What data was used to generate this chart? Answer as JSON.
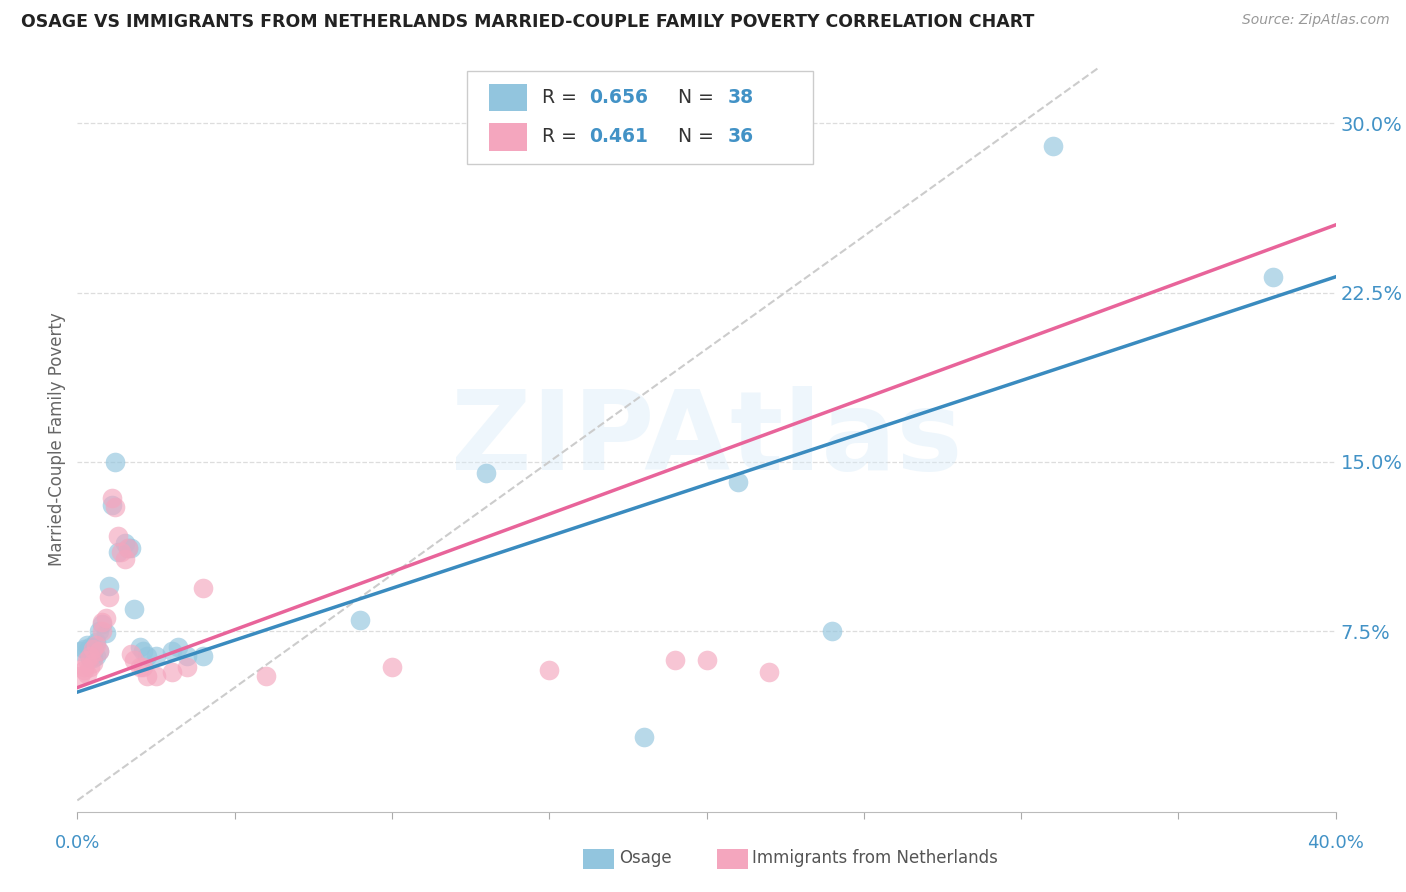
{
  "title": "OSAGE VS IMMIGRANTS FROM NETHERLANDS MARRIED-COUPLE FAMILY POVERTY CORRELATION CHART",
  "source": "Source: ZipAtlas.com",
  "ylabel": "Married-Couple Family Poverty",
  "ytick_labels": [
    "7.5%",
    "15.0%",
    "22.5%",
    "30.0%"
  ],
  "ytick_vals": [
    0.075,
    0.15,
    0.225,
    0.3
  ],
  "xlim": [
    0.0,
    0.4
  ],
  "ylim": [
    -0.005,
    0.325
  ],
  "color_blue": "#92c5de",
  "color_pink": "#f4a6be",
  "color_blue_line": "#3a8bbf",
  "color_pink_line": "#e8649a",
  "color_blue_text": "#4292c6",
  "watermark": "ZIPAtlas",
  "legend_r1": "0.656",
  "legend_n1": "38",
  "legend_r2": "0.461",
  "legend_n2": "36",
  "blue_scatter": [
    [
      0.001,
      0.066
    ],
    [
      0.002,
      0.067
    ],
    [
      0.003,
      0.066
    ],
    [
      0.003,
      0.069
    ],
    [
      0.004,
      0.063
    ],
    [
      0.004,
      0.068
    ],
    [
      0.005,
      0.063
    ],
    [
      0.005,
      0.068
    ],
    [
      0.006,
      0.07
    ],
    [
      0.006,
      0.064
    ],
    [
      0.007,
      0.066
    ],
    [
      0.007,
      0.075
    ],
    [
      0.008,
      0.078
    ],
    [
      0.009,
      0.074
    ],
    [
      0.01,
      0.095
    ],
    [
      0.011,
      0.131
    ],
    [
      0.012,
      0.15
    ],
    [
      0.013,
      0.11
    ],
    [
      0.015,
      0.114
    ],
    [
      0.016,
      0.112
    ],
    [
      0.017,
      0.112
    ],
    [
      0.018,
      0.085
    ],
    [
      0.02,
      0.068
    ],
    [
      0.021,
      0.066
    ],
    [
      0.022,
      0.064
    ],
    [
      0.025,
      0.064
    ],
    [
      0.03,
      0.066
    ],
    [
      0.032,
      0.068
    ],
    [
      0.035,
      0.064
    ],
    [
      0.04,
      0.064
    ],
    [
      0.09,
      0.08
    ],
    [
      0.13,
      0.145
    ],
    [
      0.18,
      0.028
    ],
    [
      0.21,
      0.141
    ],
    [
      0.24,
      0.075
    ],
    [
      0.31,
      0.29
    ],
    [
      0.38,
      0.232
    ],
    [
      0.005,
      0.066
    ]
  ],
  "pink_scatter": [
    [
      0.001,
      0.055
    ],
    [
      0.002,
      0.058
    ],
    [
      0.002,
      0.059
    ],
    [
      0.003,
      0.062
    ],
    [
      0.003,
      0.056
    ],
    [
      0.004,
      0.059
    ],
    [
      0.004,
      0.064
    ],
    [
      0.005,
      0.061
    ],
    [
      0.005,
      0.067
    ],
    [
      0.006,
      0.069
    ],
    [
      0.007,
      0.066
    ],
    [
      0.008,
      0.075
    ],
    [
      0.008,
      0.079
    ],
    [
      0.009,
      0.081
    ],
    [
      0.01,
      0.09
    ],
    [
      0.011,
      0.134
    ],
    [
      0.012,
      0.13
    ],
    [
      0.013,
      0.117
    ],
    [
      0.014,
      0.11
    ],
    [
      0.015,
      0.107
    ],
    [
      0.016,
      0.112
    ],
    [
      0.017,
      0.065
    ],
    [
      0.018,
      0.062
    ],
    [
      0.02,
      0.059
    ],
    [
      0.021,
      0.059
    ],
    [
      0.022,
      0.055
    ],
    [
      0.025,
      0.055
    ],
    [
      0.03,
      0.057
    ],
    [
      0.035,
      0.059
    ],
    [
      0.04,
      0.094
    ],
    [
      0.06,
      0.055
    ],
    [
      0.1,
      0.059
    ],
    [
      0.15,
      0.058
    ],
    [
      0.19,
      0.062
    ],
    [
      0.2,
      0.062
    ],
    [
      0.22,
      0.057
    ]
  ],
  "blue_line_x0": 0.0,
  "blue_line_x1": 0.4,
  "blue_line_y0": 0.048,
  "blue_line_y1": 0.232,
  "pink_line_x0": 0.0,
  "pink_line_x1": 0.4,
  "pink_line_y0": 0.05,
  "pink_line_y1": 0.255,
  "diag_line_x0": 0.0,
  "diag_line_x1": 0.325,
  "diag_line_y0": 0.0,
  "diag_line_y1": 0.325
}
